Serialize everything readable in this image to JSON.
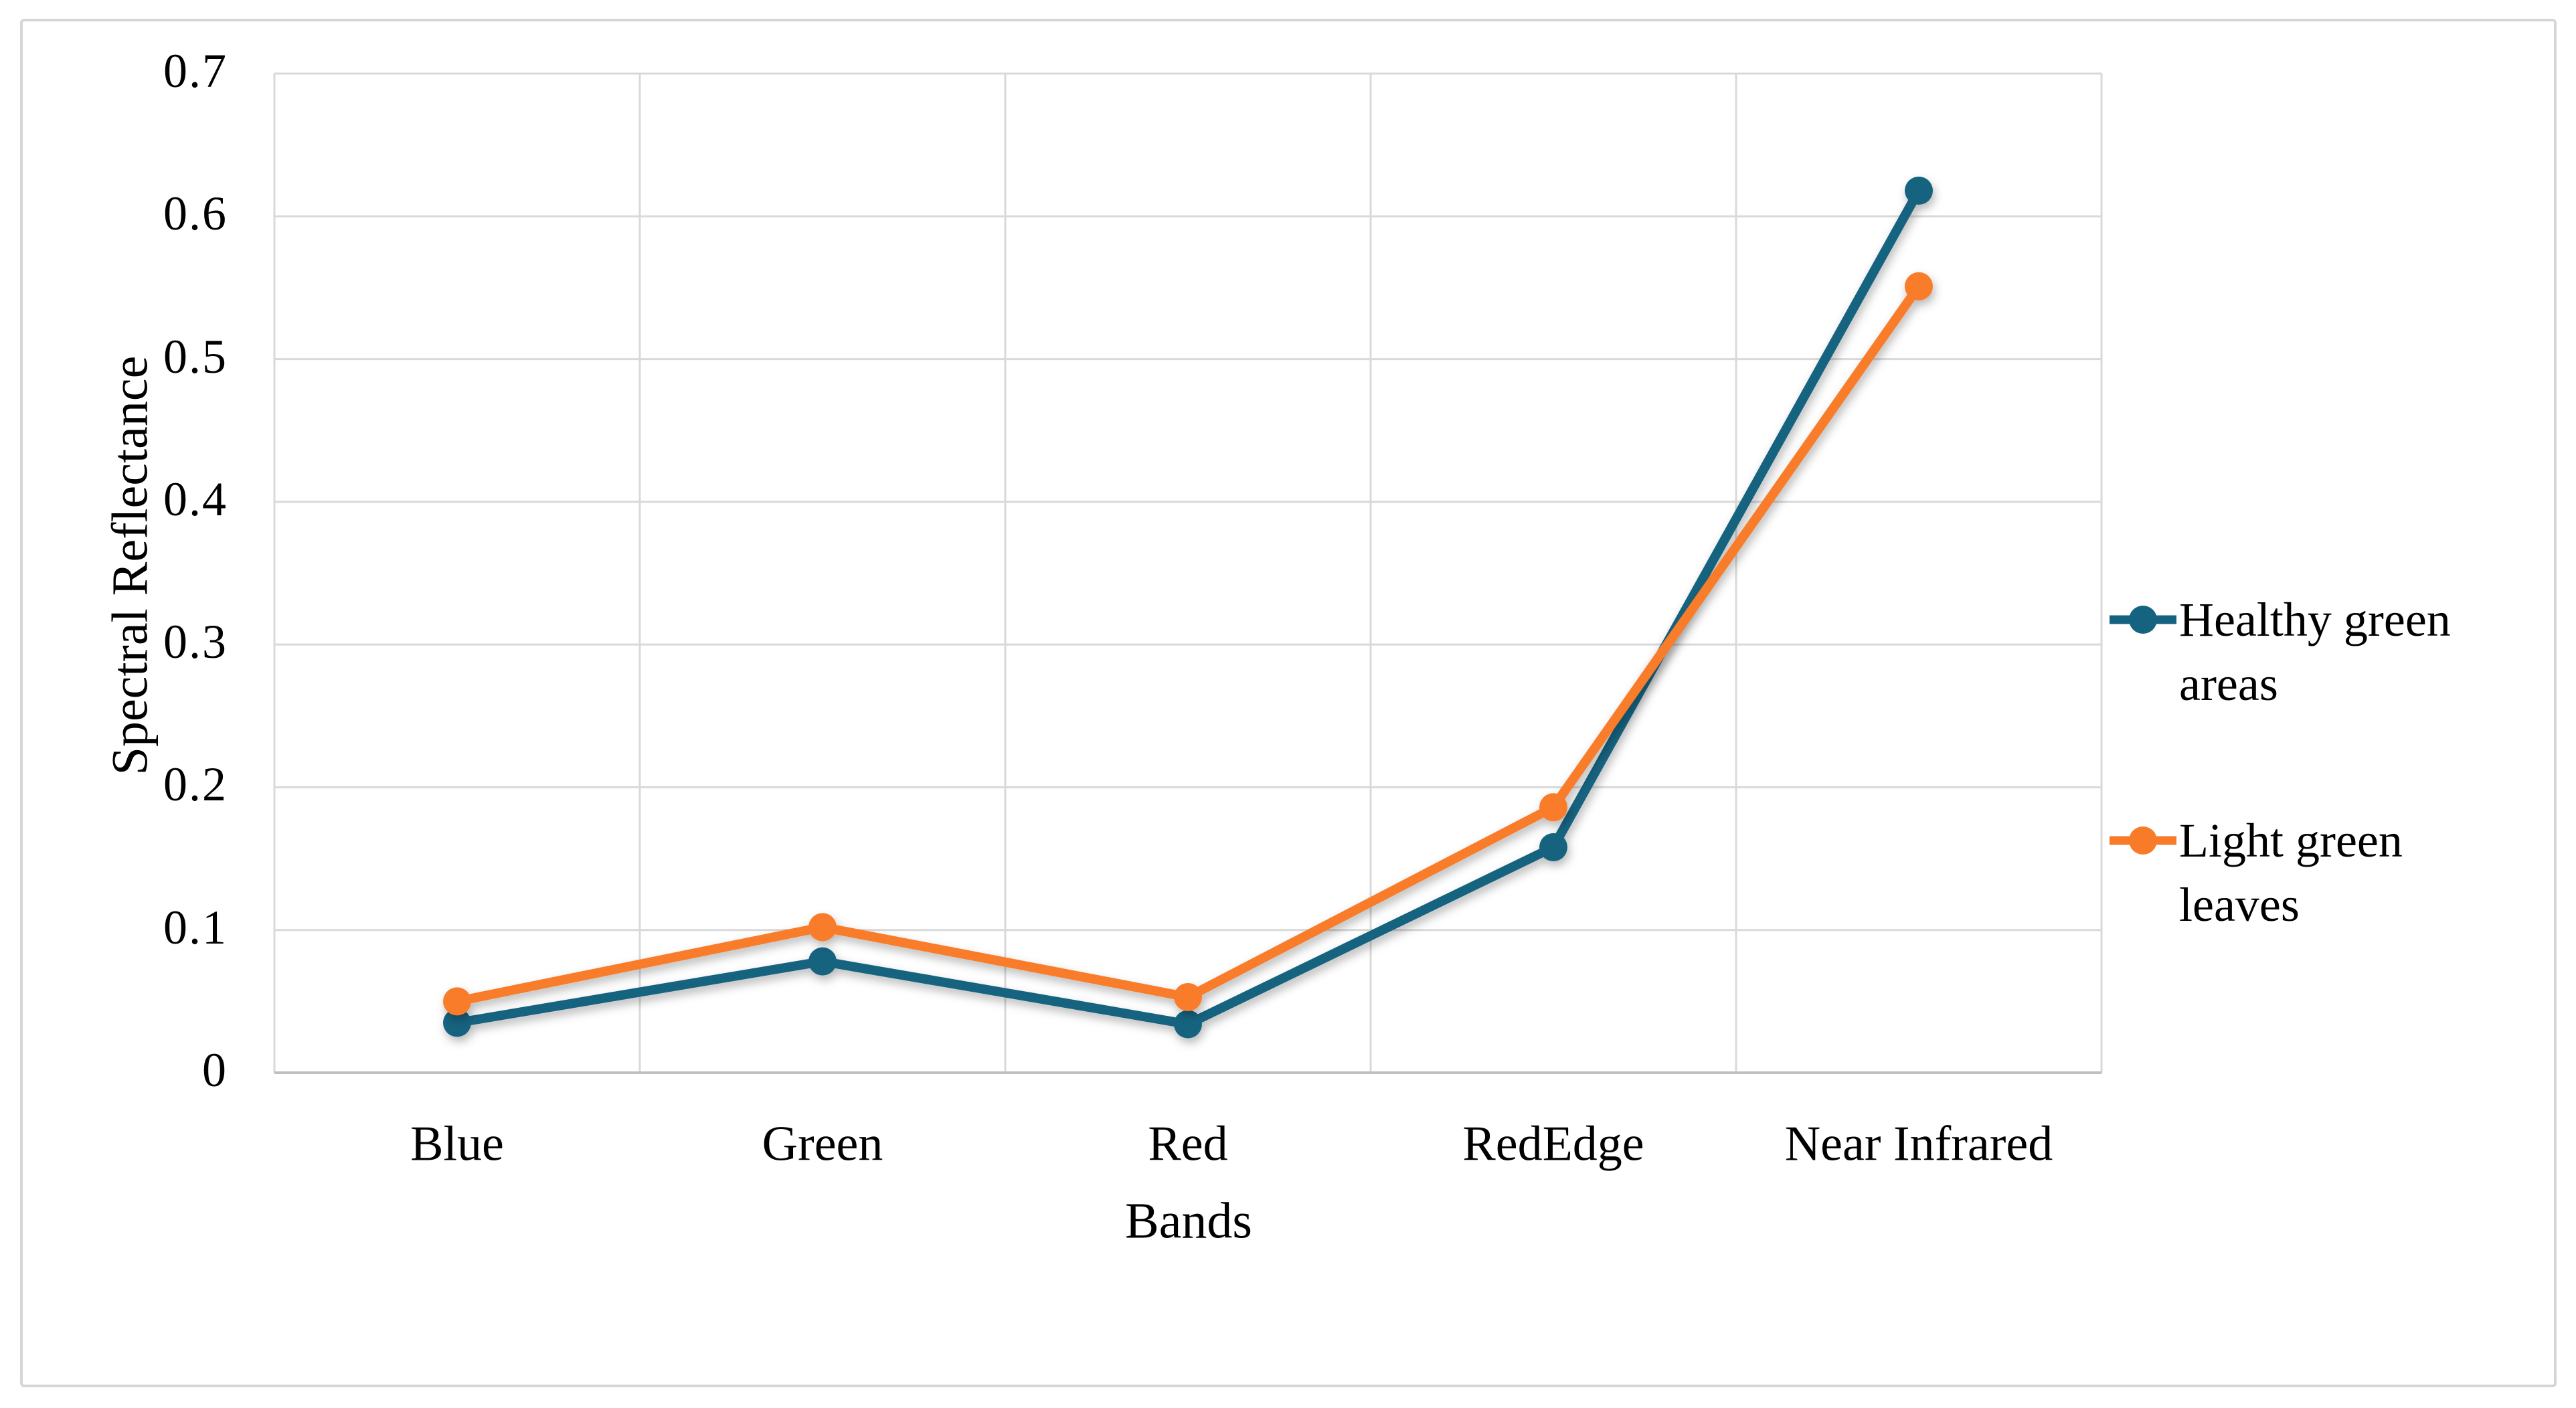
{
  "figure": {
    "background": "#ffffff",
    "border_color": "#d6d6d6"
  },
  "chart_data": {
    "type": "line",
    "title": "",
    "xlabel": "Bands",
    "ylabel": "Spectral Reflectance",
    "categories": [
      "Blue",
      "Green",
      "Red",
      "RedEdge",
      "Near Infrared"
    ],
    "series": [
      {
        "name": "Healthy green areas",
        "color": "#156380",
        "marker": "circle",
        "values": [
          0.035,
          0.078,
          0.034,
          0.158,
          0.618
        ]
      },
      {
        "name": "Light green leaves",
        "color": "#F87B29",
        "marker": "circle",
        "values": [
          0.05,
          0.102,
          0.053,
          0.186,
          0.551
        ]
      }
    ],
    "ylim": [
      0,
      0.7
    ],
    "yticks": [
      0,
      0.1,
      0.2,
      0.3,
      0.4,
      0.5,
      0.6,
      0.7
    ],
    "ytick_labels": [
      "0",
      "0.1",
      "0.2",
      "0.3",
      "0.4",
      "0.5",
      "0.6",
      "0.7"
    ],
    "grid": true,
    "gridline_color": "#d9d9d9",
    "axis_line_color": "#bfbfbf",
    "text_color": "#000000",
    "legend_position": "right"
  }
}
